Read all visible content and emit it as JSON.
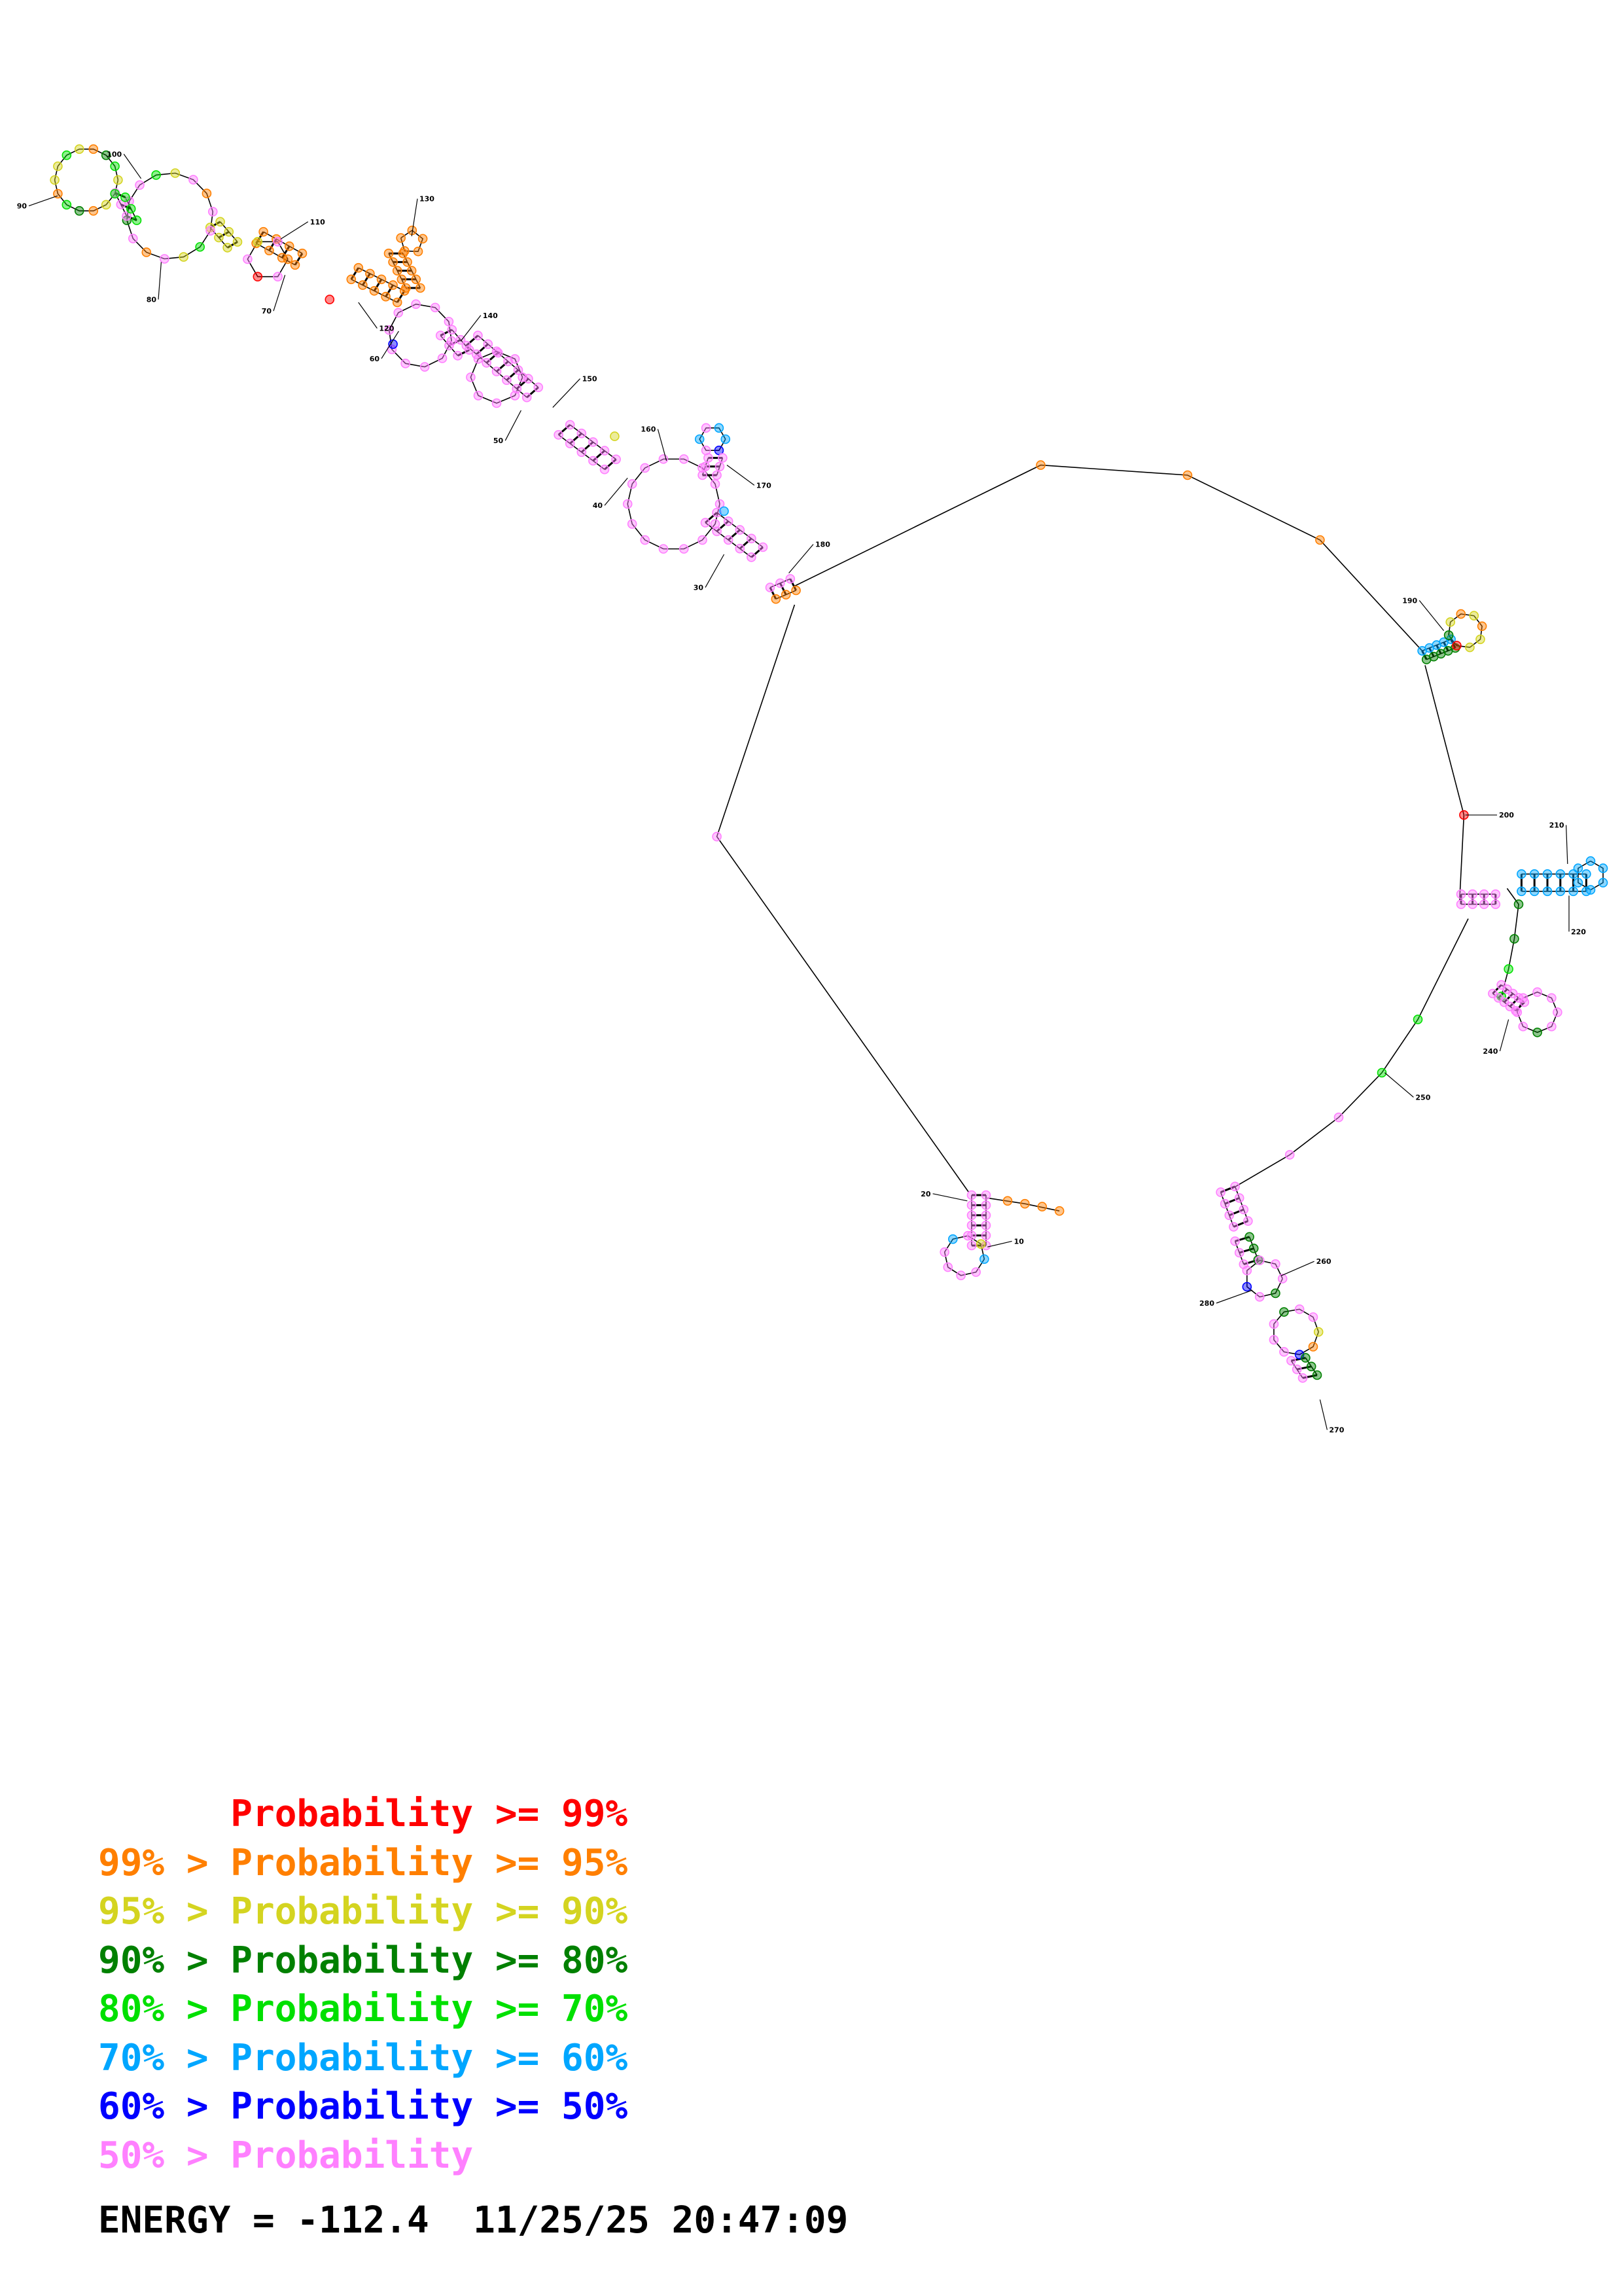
{
  "diagram": {
    "numbers": {
      "n10": "10",
      "n20": "20",
      "n30": "30",
      "n40": "40",
      "n50": "50",
      "n60": "60",
      "n70": "70",
      "n80": "80",
      "n90": "90",
      "n100": "100",
      "n110": "110",
      "n120": "120",
      "n130": "130",
      "n140": "140",
      "n150": "150",
      "n160": "160",
      "n170": "170",
      "n180": "180",
      "n190": "190",
      "n200": "200",
      "n210": "210",
      "n220": "220",
      "n240": "240",
      "n250": "250",
      "n260": "260",
      "n270": "270",
      "n280": "280"
    }
  },
  "colors": {
    "p99": "#ff0000",
    "p95": "#ff7f00",
    "p90": "#d4d420",
    "p80": "#008000",
    "p70": "#00e000",
    "p60": "#00a6ff",
    "p50": "#0000ff",
    "plow": "#ff80ff",
    "line": "#000000"
  },
  "legend": {
    "rows": [
      {
        "prefix": "    ",
        "label": "Probability >= 99%"
      },
      {
        "prefix": "99% > ",
        "label": "Probability >= 95%"
      },
      {
        "prefix": "95% > ",
        "label": "Probability >= 90%"
      },
      {
        "prefix": "90% > ",
        "label": "Probability >= 80%"
      },
      {
        "prefix": "80% > ",
        "label": "Probability >= 70%"
      },
      {
        "prefix": "70% > ",
        "label": "Probability >= 60%"
      },
      {
        "prefix": "60% > ",
        "label": "Probability >= 50%"
      },
      {
        "prefix": "50% > ",
        "label": "Probability"
      }
    ]
  },
  "footer": {
    "energy_label": "ENERGY = ",
    "energy_value": "-112.4",
    "timestamp": "11/25/25 20:47:09"
  }
}
